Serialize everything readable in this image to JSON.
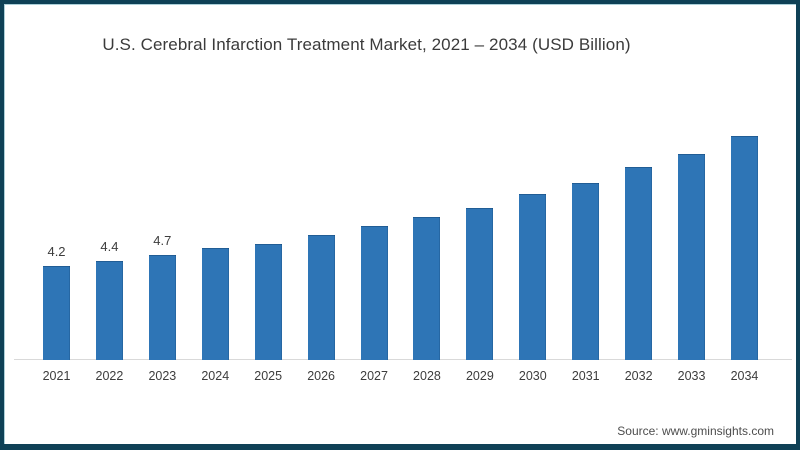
{
  "title": "U.S. Cerebral Infarction Treatment Market, 2021 – 2034 (USD Billion)",
  "source": "Source: www.gminsights.com",
  "colors": {
    "bar": "#2e75b6",
    "frame": "#0f4156",
    "axis": "#d9d9d9",
    "title_text": "#3b3b3b",
    "label_text": "#3d3d3d",
    "source_text": "#4d4d4d"
  },
  "chart_data": {
    "type": "bar",
    "title": "U.S. Cerebral Infarction Treatment Market, 2021 – 2034 (USD Billion)",
    "categories": [
      "2021",
      "2022",
      "2023",
      "2024",
      "2025",
      "2026",
      "2027",
      "2028",
      "2029",
      "2030",
      "2031",
      "2032",
      "2033",
      "2034"
    ],
    "values": [
      4.2,
      4.4,
      4.7,
      5.0,
      5.2,
      5.6,
      6.0,
      6.4,
      6.8,
      7.4,
      7.9,
      8.6,
      9.2,
      10.0
    ],
    "data_labels": [
      "4.2",
      "4.4",
      "4.7",
      "",
      "",
      "",
      "",
      "",
      "",
      "",
      "",
      "",
      "",
      ""
    ],
    "xlabel": "",
    "ylabel": "",
    "ylim": [
      0,
      10.5
    ],
    "grid": false,
    "legend": "none",
    "bar_color": "#2e75b6",
    "source": "Source: www.gminsights.com"
  }
}
